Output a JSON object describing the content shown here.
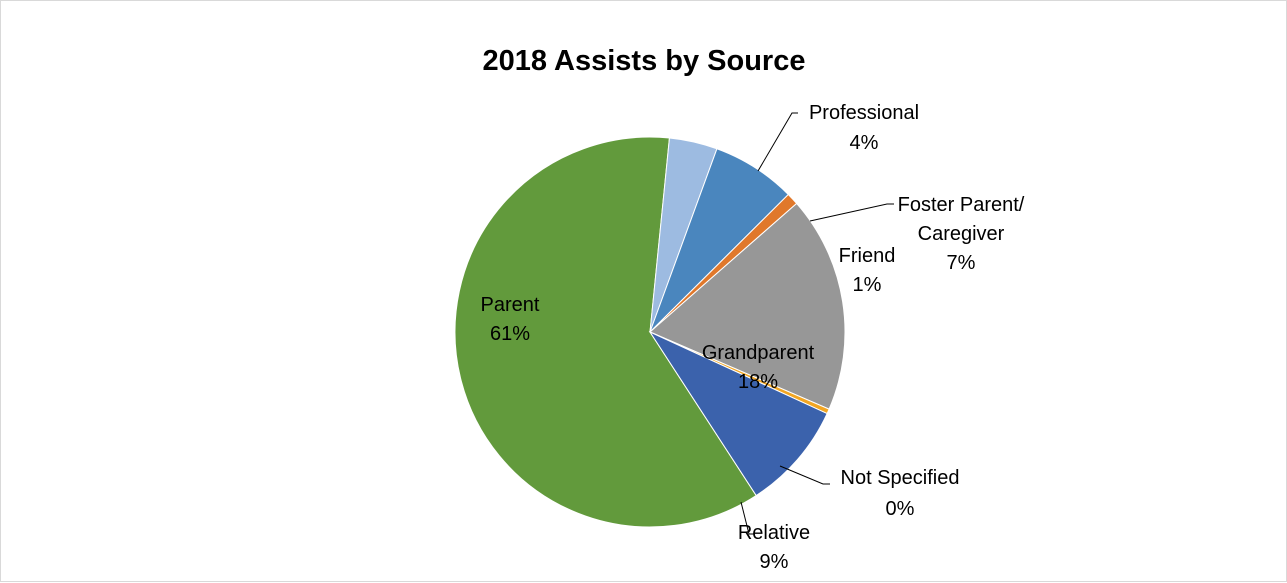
{
  "chart_data": {
    "type": "pie",
    "title": "2018 Assists by Source",
    "slices": [
      {
        "name": "Parent",
        "value": 61,
        "percent_label": "61%",
        "color": "#629a3c"
      },
      {
        "name": "Professional",
        "value": 4,
        "percent_label": "4%",
        "color": "#9dbbe1"
      },
      {
        "name": "Foster Parent/ Caregiver",
        "name_lines": [
          "Foster Parent/",
          "Caregiver"
        ],
        "value": 7,
        "percent_label": "7%",
        "color": "#4a86be"
      },
      {
        "name": "Friend",
        "value": 1,
        "percent_label": "1%",
        "color": "#e0782b"
      },
      {
        "name": "Grandparent",
        "value": 18,
        "percent_label": "18%",
        "color": "#979797"
      },
      {
        "name": "Not Specified",
        "value": 0.4,
        "percent_label": "0%",
        "color": "#f2a623"
      },
      {
        "name": "Relative",
        "value": 9,
        "percent_label": "9%",
        "color": "#3b62ac"
      }
    ],
    "legend": "none",
    "data_labels": "category name and percentage"
  }
}
